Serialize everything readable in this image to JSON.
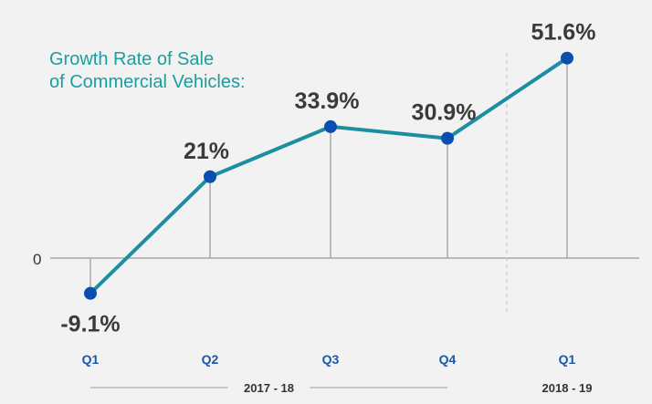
{
  "chart_data": {
    "type": "line",
    "title_lines": [
      "Growth Rate of Sale",
      "of Commercial Vehicles:"
    ],
    "categories": [
      "Q1",
      "Q2",
      "Q3",
      "Q4",
      "Q1"
    ],
    "values": [
      -9.1,
      21,
      33.9,
      30.9,
      51.6
    ],
    "data_labels": [
      "-9.1%",
      "21%",
      "33.9%",
      "30.9%",
      "51.6%"
    ],
    "zero_label": "0",
    "periods": [
      {
        "label": "2017 - 18",
        "from_index": 0,
        "to_index": 3
      },
      {
        "label": "2018 - 19",
        "from_index": 4,
        "to_index": 4
      }
    ],
    "colors": {
      "line": "#1b8fa0",
      "marker": "#0a4fb0",
      "title": "#1b9e9e",
      "category": "#1a57a8",
      "baseline": "#999999",
      "divider": "#c8c8c8",
      "background": "#f2f2f2"
    },
    "grid": false
  }
}
